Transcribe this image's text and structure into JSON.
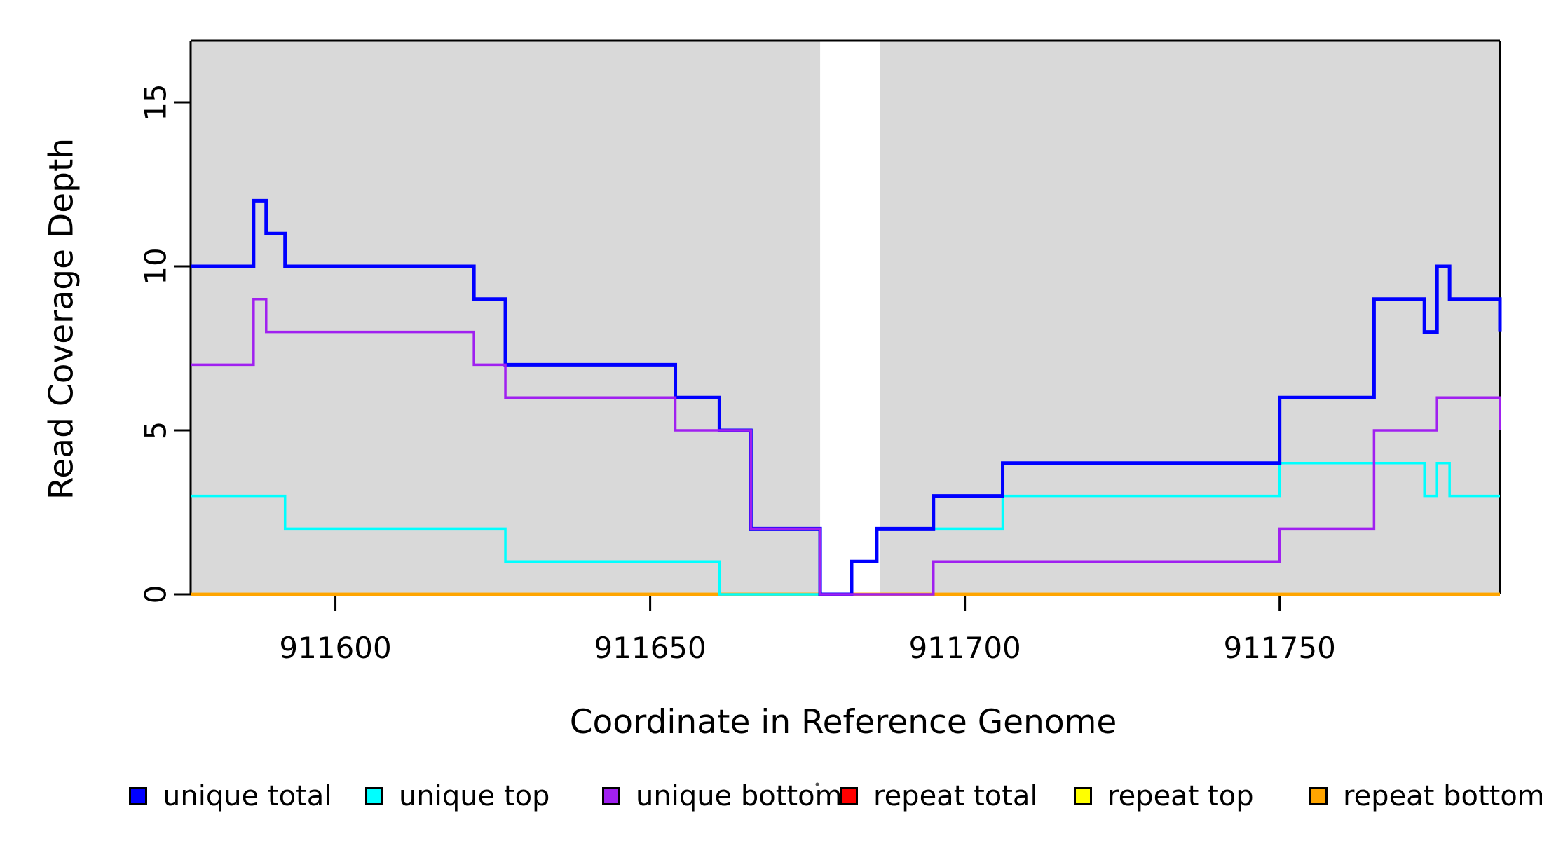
{
  "chart_data": {
    "type": "line",
    "step": true,
    "title": "",
    "xlabel": "Coordinate in Reference Genome",
    "ylabel": "Read Coverage Depth",
    "xlim": [
      911577,
      911785
    ],
    "ylim": [
      0,
      16.9
    ],
    "x_ticks": [
      911600,
      911650,
      911700,
      911750
    ],
    "x_tick_labels": [
      "911600",
      "911650",
      "911700",
      "911750"
    ],
    "y_ticks": [
      0,
      5,
      10,
      15
    ],
    "y_tick_labels": [
      "0",
      "5",
      "10",
      "15"
    ],
    "grid": false,
    "background_shading": {
      "color": "#D9D9D9",
      "regions": [
        [
          911577,
          911677
        ],
        [
          911686.5,
          911785
        ]
      ]
    },
    "series": [
      {
        "name": "repeat total",
        "color": "#FF0000",
        "width": 4.5,
        "points": [
          [
            911577,
            0
          ]
        ]
      },
      {
        "name": "repeat top",
        "color": "#FFFF00",
        "width": 4.5,
        "points": [
          [
            911577,
            0
          ]
        ]
      },
      {
        "name": "repeat bottom",
        "color": "#FFA500",
        "width": 4.5,
        "points": [
          [
            911577,
            0
          ]
        ]
      },
      {
        "name": "unique top",
        "color": "#00FFFF",
        "width": 3.5,
        "points": [
          [
            911577,
            3
          ],
          [
            911592,
            2
          ],
          [
            911627,
            1
          ],
          [
            911661,
            0
          ],
          [
            911682,
            1
          ],
          [
            911686,
            2
          ],
          [
            911706,
            3
          ],
          [
            911750,
            4
          ],
          [
            911773,
            3
          ],
          [
            911775,
            4
          ],
          [
            911777,
            3
          ]
        ]
      },
      {
        "name": "unique total",
        "color": "#0000FF",
        "width": 5,
        "points": [
          [
            911577,
            10
          ],
          [
            911587,
            12
          ],
          [
            911589,
            11
          ],
          [
            911592,
            10
          ],
          [
            911622,
            9
          ],
          [
            911627,
            7
          ],
          [
            911654,
            6
          ],
          [
            911661,
            5
          ],
          [
            911666,
            2
          ],
          [
            911677,
            0
          ],
          [
            911682,
            1
          ],
          [
            911686,
            2
          ],
          [
            911695,
            3
          ],
          [
            911706,
            4
          ],
          [
            911750,
            6
          ],
          [
            911765,
            9
          ],
          [
            911773,
            8
          ],
          [
            911775,
            10
          ],
          [
            911777,
            9
          ],
          [
            911785,
            8
          ]
        ]
      },
      {
        "name": "unique bottom",
        "color": "#A020F0",
        "width": 3.5,
        "points": [
          [
            911577,
            7
          ],
          [
            911587,
            9
          ],
          [
            911589,
            8
          ],
          [
            911622,
            7
          ],
          [
            911627,
            6
          ],
          [
            911654,
            5
          ],
          [
            911666,
            2
          ],
          [
            911677,
            0
          ],
          [
            911695,
            1
          ],
          [
            911750,
            2
          ],
          [
            911765,
            5
          ],
          [
            911775,
            6
          ],
          [
            911785,
            5
          ]
        ]
      }
    ],
    "legend": {
      "position": "bottom",
      "entries": [
        {
          "label": "unique total",
          "color": "#0000FF"
        },
        {
          "label": "unique top",
          "color": "#00FFFF"
        },
        {
          "label": "unique bottom",
          "color": "#A020F0"
        },
        {
          "label": "repeat total",
          "color": "#FF0000"
        },
        {
          "label": "repeat top",
          "color": "#FFFF00"
        },
        {
          "label": "repeat bottom",
          "color": "#FFA500"
        }
      ]
    }
  }
}
